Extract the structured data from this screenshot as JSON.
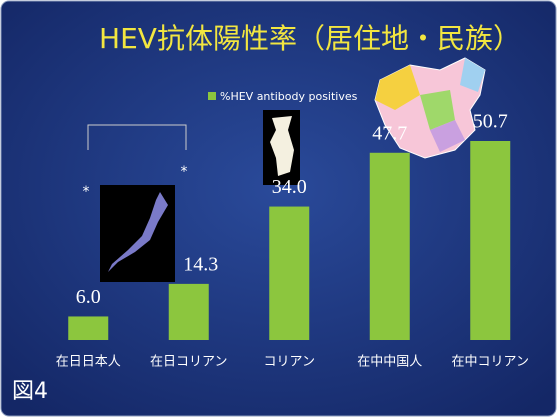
{
  "chart_data": {
    "type": "bar",
    "title": "HEV抗体陽性率（居住地・民族）",
    "figure_label": "図4",
    "legend": "%HEV antibody positives",
    "categories": [
      "在日日本人",
      "在日コリアン",
      "コリアン",
      "在中中国人",
      "在中コリアン"
    ],
    "values": [
      6.0,
      14.3,
      34.0,
      47.7,
      50.7
    ],
    "value_labels": [
      "6.0",
      "14.3",
      "34.0",
      "47.7",
      "50.7"
    ],
    "annotations": [
      "*",
      "*"
    ],
    "color": "#8cc63e"
  }
}
